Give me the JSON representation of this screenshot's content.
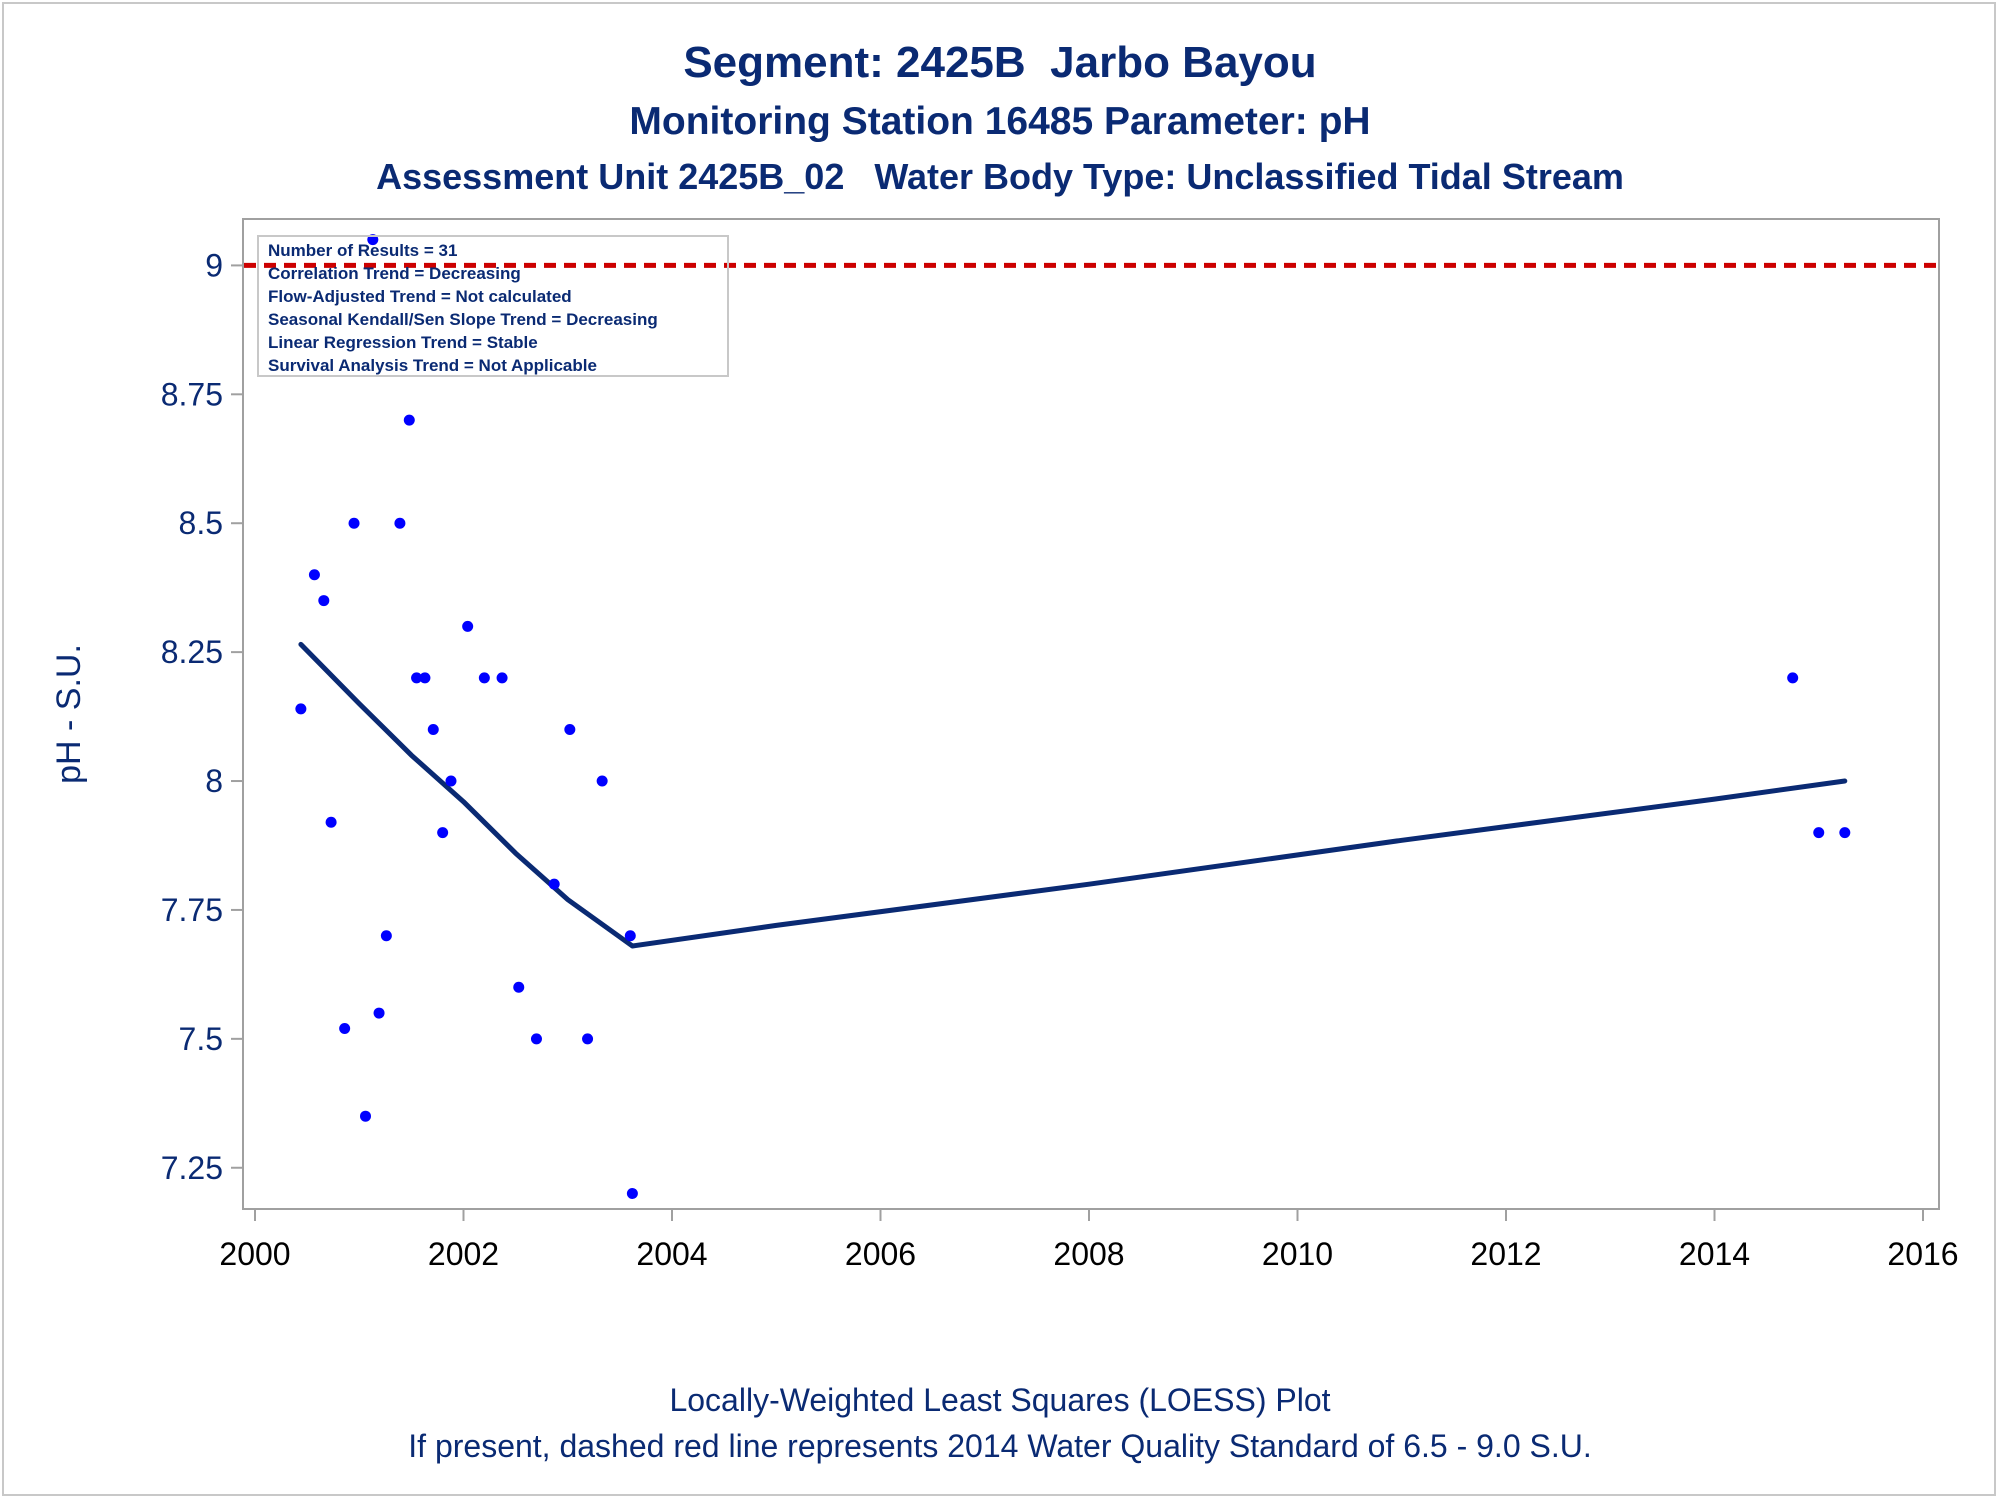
{
  "chart_data": {
    "type": "scatter",
    "title": "Segment: 2425B  Jarbo Bayou",
    "subtitle": [
      "Monitoring Station 16485 Parameter: pH",
      "Assessment Unit 2425B_02   Water Body Type: Unclassified Tidal Stream"
    ],
    "xlabel": "",
    "ylabel": "pH - S.U.",
    "xlim": [
      2000,
      2016
    ],
    "ylim": [
      7.17,
      9.09
    ],
    "x_ticks": [
      2000,
      2002,
      2004,
      2006,
      2008,
      2010,
      2012,
      2014,
      2016
    ],
    "y_ticks": [
      7.25,
      7.5,
      7.75,
      8,
      8.25,
      8.5,
      8.75,
      9
    ],
    "y_tick_labels": [
      "7.25",
      "7.5",
      "7.75",
      "8",
      "8.25",
      "8.5",
      "8.75",
      "9"
    ],
    "grid": false,
    "legend_placement": "top-left",
    "colors": {
      "points": "#0000ff",
      "loess": "#0a2a73",
      "standard": "#cc0000",
      "axis": "#a0a0a0"
    },
    "points": [
      {
        "x": 2000.44,
        "y": 8.14
      },
      {
        "x": 2000.57,
        "y": 8.4
      },
      {
        "x": 2000.66,
        "y": 8.35
      },
      {
        "x": 2000.73,
        "y": 7.92
      },
      {
        "x": 2000.86,
        "y": 7.52
      },
      {
        "x": 2000.95,
        "y": 8.5
      },
      {
        "x": 2001.06,
        "y": 7.35
      },
      {
        "x": 2001.13,
        "y": 9.05
      },
      {
        "x": 2001.19,
        "y": 7.55
      },
      {
        "x": 2001.26,
        "y": 7.7
      },
      {
        "x": 2001.39,
        "y": 8.5
      },
      {
        "x": 2001.48,
        "y": 8.7
      },
      {
        "x": 2001.55,
        "y": 8.2
      },
      {
        "x": 2001.63,
        "y": 8.2
      },
      {
        "x": 2001.71,
        "y": 8.1
      },
      {
        "x": 2001.8,
        "y": 7.9
      },
      {
        "x": 2001.88,
        "y": 8.0
      },
      {
        "x": 2002.04,
        "y": 8.3
      },
      {
        "x": 2002.2,
        "y": 8.2
      },
      {
        "x": 2002.37,
        "y": 8.2
      },
      {
        "x": 2002.53,
        "y": 7.6
      },
      {
        "x": 2002.7,
        "y": 7.5
      },
      {
        "x": 2002.87,
        "y": 7.8
      },
      {
        "x": 2003.02,
        "y": 8.1
      },
      {
        "x": 2003.19,
        "y": 7.5
      },
      {
        "x": 2003.33,
        "y": 8.0
      },
      {
        "x": 2003.6,
        "y": 7.7
      },
      {
        "x": 2003.62,
        "y": 7.2
      },
      {
        "x": 2014.75,
        "y": 8.2
      },
      {
        "x": 2015.0,
        "y": 7.9
      },
      {
        "x": 2015.25,
        "y": 7.9
      }
    ],
    "loess": {
      "x": [
        2000.44,
        2001.0,
        2001.5,
        2002.0,
        2002.5,
        2003.0,
        2003.62,
        2005.0,
        2008.0,
        2011.0,
        2014.0,
        2015.25
      ],
      "y": [
        8.265,
        8.15,
        8.05,
        7.96,
        7.86,
        7.77,
        7.68,
        7.72,
        7.8,
        7.885,
        7.965,
        8.0
      ]
    },
    "standard_line": {
      "y": 9.0
    }
  },
  "legend_lines": [
    "Number of Results = 31",
    "Correlation Trend = Decreasing",
    "Flow-Adjusted Trend = Not calculated",
    "Seasonal Kendall/Sen Slope Trend = Decreasing",
    "Linear Regression Trend = Stable",
    "Survival Analysis Trend = Not Applicable"
  ],
  "footnotes": [
    "Locally-Weighted Least Squares (LOESS) Plot",
    "If present, dashed red line represents 2014 Water Quality Standard of 6.5 - 9.0 S.U."
  ]
}
